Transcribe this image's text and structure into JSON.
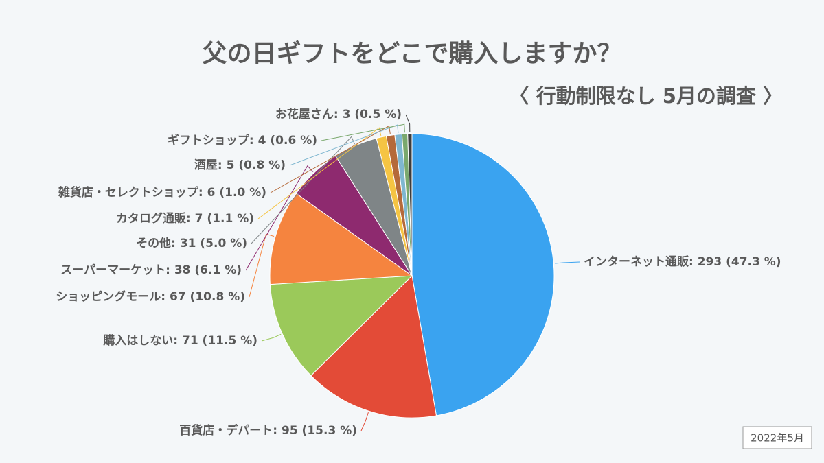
{
  "chart_data": {
    "type": "pie",
    "title": "父の日ギフトをどこで購入しますか？",
    "subtitle": "〈 行動制限なし 5月の調査 〉",
    "footnote": "2022年5月",
    "categories": [
      "インターネット通販",
      "百貨店・デパート",
      "購入はしない",
      "ショッピングモール",
      "スーパーマーケット",
      "その他",
      "カタログ通販",
      "雑貨店・セレクトショップ",
      "酒屋",
      "ギフトショップ",
      "お花屋さん"
    ],
    "values": [
      293,
      95,
      71,
      67,
      38,
      31,
      7,
      6,
      5,
      4,
      3
    ],
    "value_labels": [
      "293 (47.3 %)",
      "95 (15.3 %)",
      "71 (11.5 %)",
      "67 (10.8 %)",
      "38 (6.1 %)",
      "31 (5.0 %)",
      "7 (1.1 %)",
      "6 (1.0 %)",
      "5 (0.8 %)",
      "4 (0.6 %)",
      "3 (0.5 %)"
    ],
    "label_separator": ": ",
    "colors": [
      "#3aa3f0",
      "#e34b37",
      "#9bc95a",
      "#f5843f",
      "#8e2a6f",
      "#7f8587",
      "#f5c443",
      "#b56a3a",
      "#7fb7d0",
      "#7aa86d",
      "#3c3c3c"
    ]
  }
}
